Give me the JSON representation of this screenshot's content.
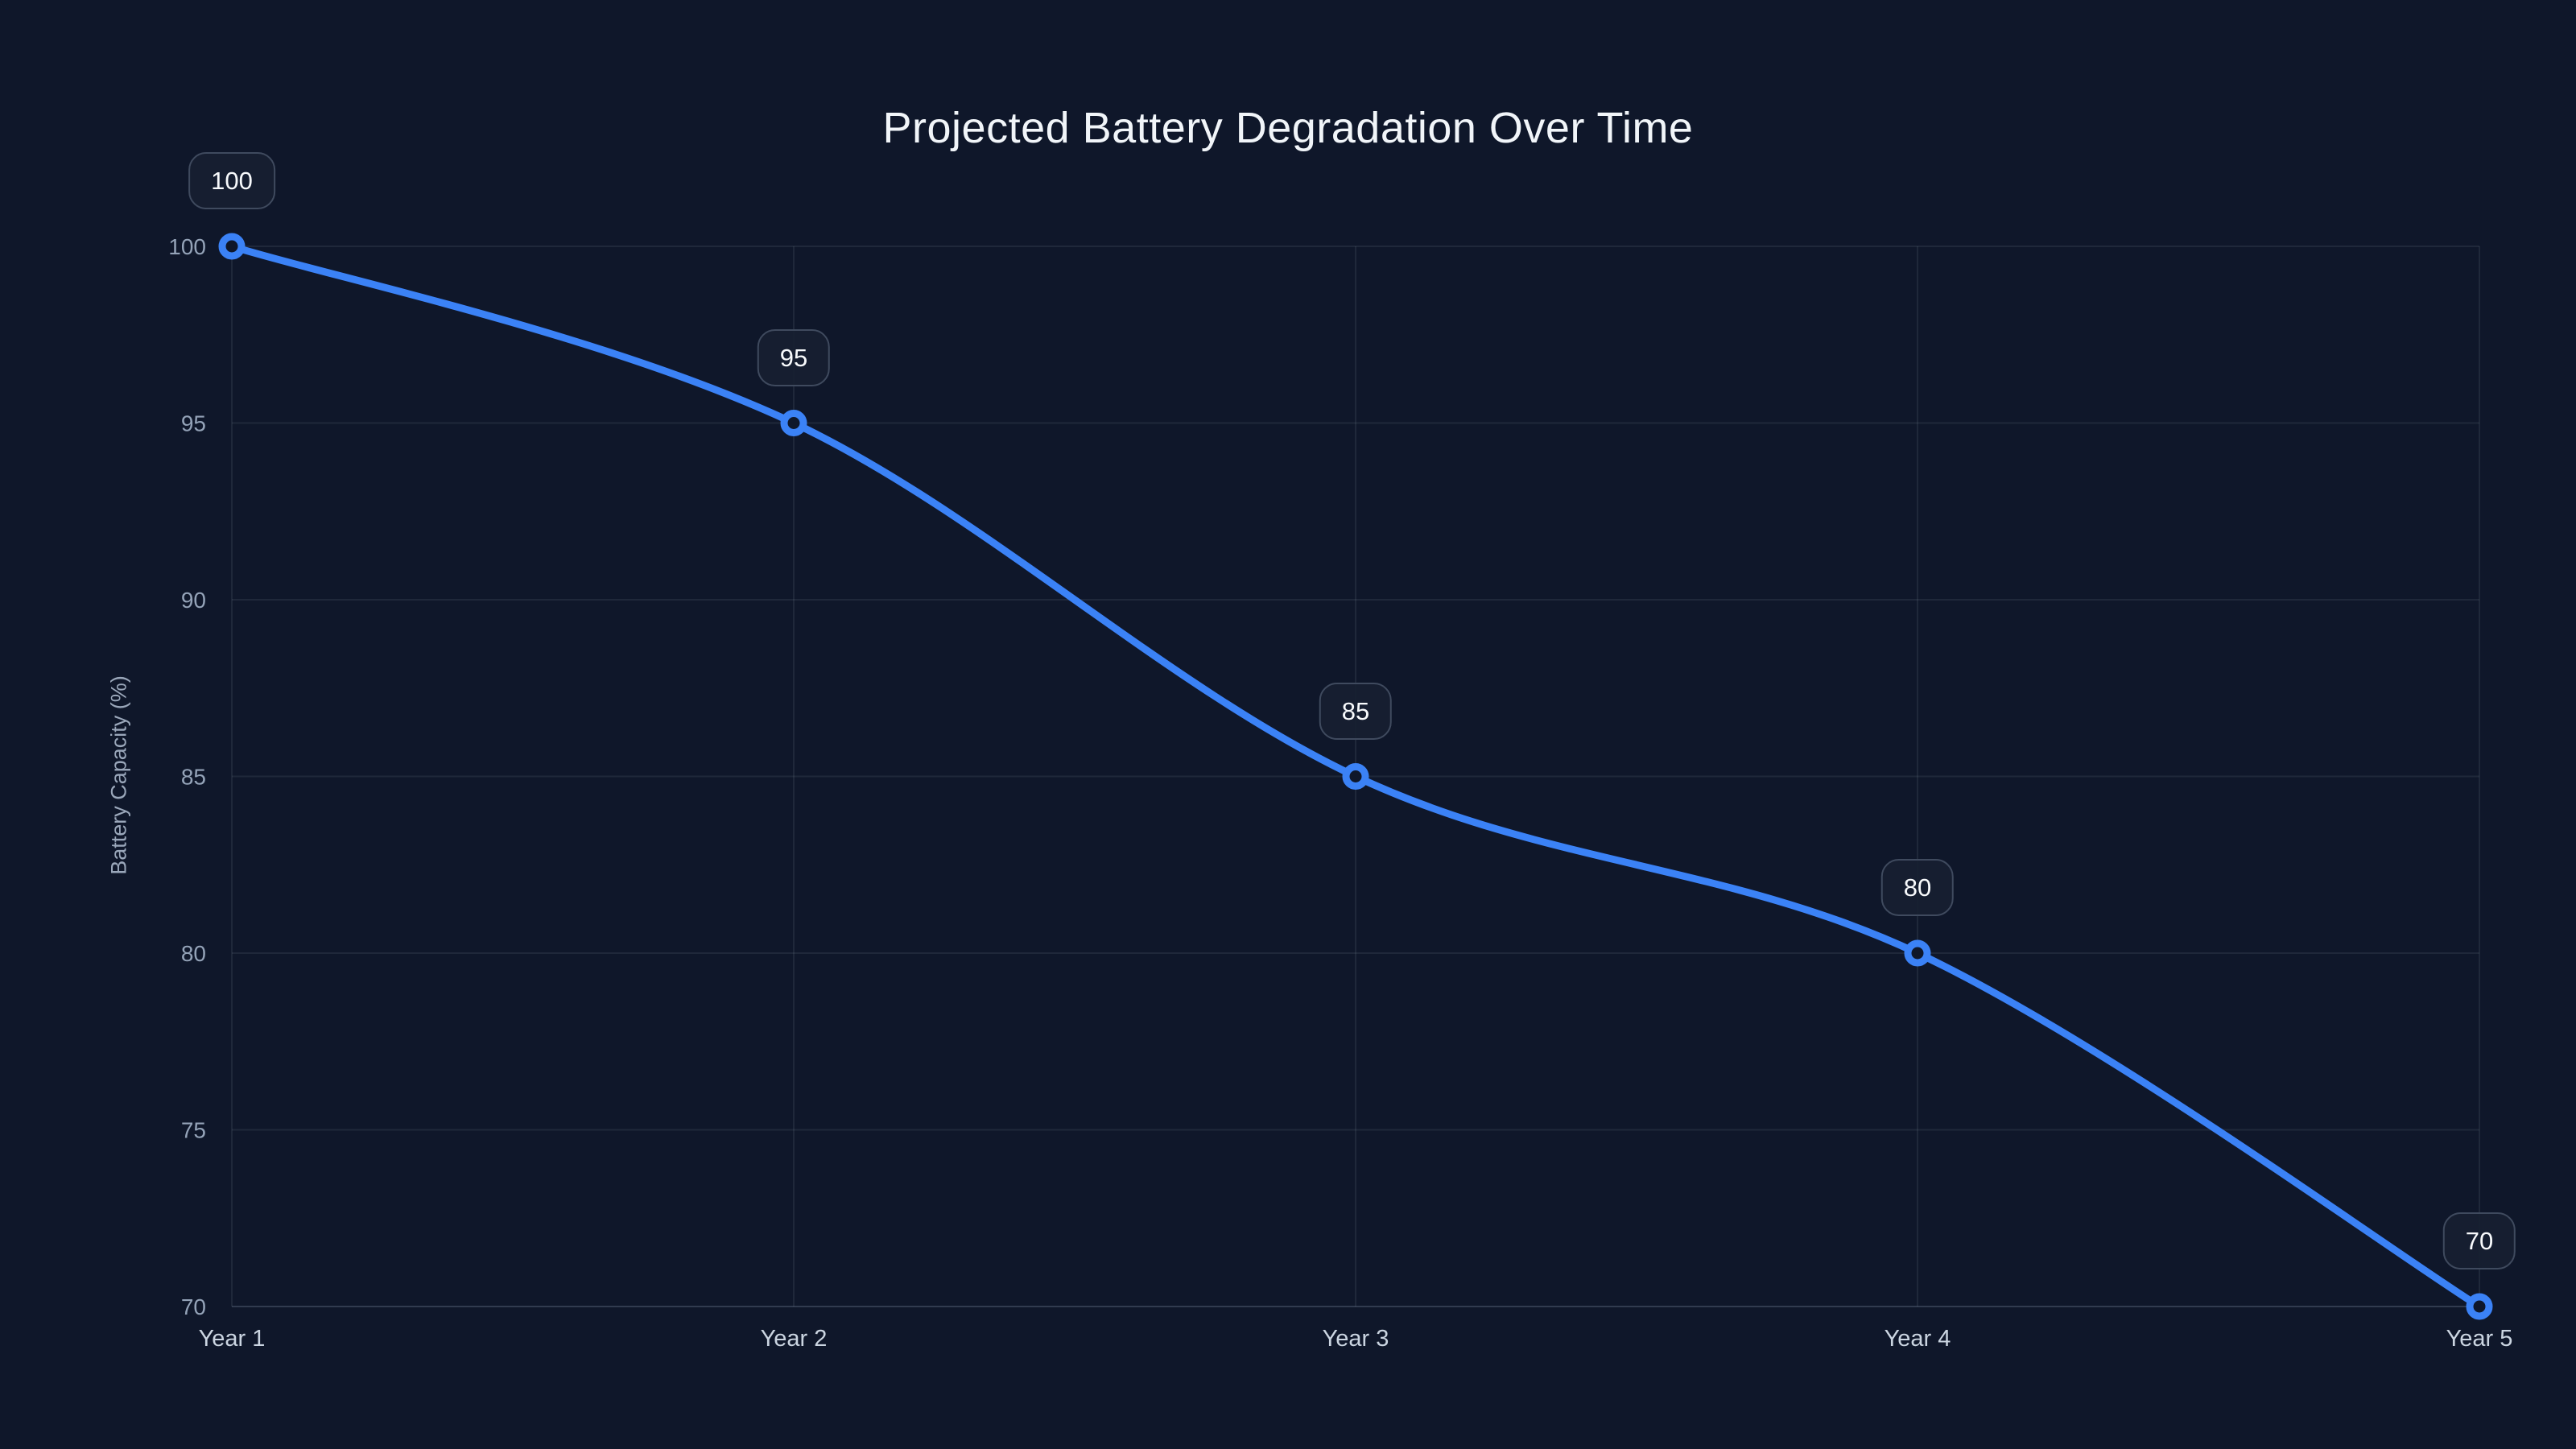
{
  "page": {
    "background": "#0f172a"
  },
  "chart_data": {
    "type": "line",
    "title": "Projected Battery Degradation Over Time",
    "categories": [
      "Year 1",
      "Year 2",
      "Year 3",
      "Year 4",
      "Year 5"
    ],
    "series": [
      {
        "name": "Battery Capacity",
        "values": [
          100,
          95,
          85,
          80,
          70
        ]
      }
    ],
    "point_labels": [
      "100",
      "95",
      "85",
      "80",
      "70"
    ],
    "xlabel": "",
    "ylabel": "Battery Capacity (%)",
    "ylim": [
      70,
      100
    ],
    "yticks": [
      70,
      75,
      80,
      85,
      90,
      95,
      100
    ],
    "grid": true,
    "legend_position": "none",
    "line_color": "#3b82f6",
    "line_width": 9,
    "point_fill": "#0f172a",
    "grid_color": "rgba(148,163,184,0.12)",
    "axis_line_color": "rgba(148,163,184,0.26)",
    "ytick_color": "#94a3b8",
    "xtick_color": "#cbd5e1",
    "title_color": "#f1f5f9",
    "badge_bg": "rgba(23,31,49,0.92)",
    "badge_border": "#3f4a5e",
    "badge_text_color": "#f8fafc"
  }
}
